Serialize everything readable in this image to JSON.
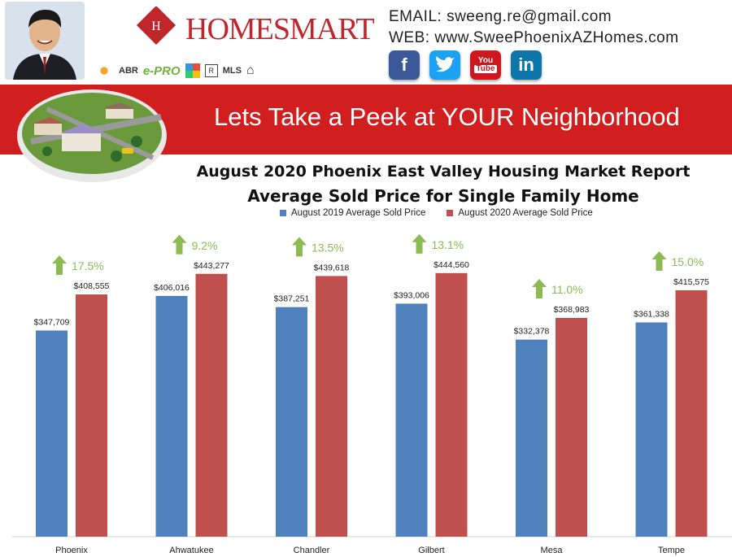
{
  "header": {
    "brand_name": "HOMESMART",
    "email": "EMAIL: sweeng.re@gmail.com",
    "web": "WEB: www.SweePhoenixAZHomes.com",
    "badges": [
      "ABR",
      "e-PRO",
      "MLS"
    ],
    "socials": [
      {
        "icon": "facebook-icon",
        "glyph": "f",
        "color": "#3b5998"
      },
      {
        "icon": "twitter-icon",
        "glyph": "t",
        "color": "#1da1f2"
      },
      {
        "icon": "youtube-icon",
        "glyph": "You Tube",
        "color": "#cc181e"
      },
      {
        "icon": "linkedin-icon",
        "glyph": "in",
        "color": "#0e76a8"
      }
    ]
  },
  "banner": {
    "title": "Lets Take a Peek at YOUR Neighborhood",
    "color": "#d11e1e"
  },
  "chart_data": {
    "type": "bar",
    "title": "August 2020 Phoenix East Valley Housing Market Report",
    "subtitle": "Average Sold Price for Single Family Home",
    "categories": [
      "Phoenix",
      "Ahwatukee",
      "Chandler",
      "Gilbert",
      "Mesa",
      "Tempe"
    ],
    "series": [
      {
        "name": "August 2019 Average Sold Price",
        "color": "#4f81bd",
        "values": [
          347709,
          406016,
          387251,
          393006,
          332378,
          361338
        ],
        "labels": [
          "$347,709",
          "$406,016",
          "$387,251",
          "$393,006",
          "$332,378",
          "$361,338"
        ]
      },
      {
        "name": "August 2020 Average Sold Price",
        "color": "#c0504d",
        "values": [
          408555,
          443277,
          439618,
          444560,
          368983,
          415575
        ],
        "labels": [
          "$408,555",
          "$443,277",
          "$439,618",
          "$444,560",
          "$368,983",
          "$415,575"
        ]
      }
    ],
    "changes": [
      "17.5%",
      "9.2%",
      "13.5%",
      "13.1%",
      "11.0%",
      "15.0%"
    ],
    "change_color": "#8dbb52",
    "ylim": [
      0,
      480000
    ],
    "grid": false,
    "legend": "top"
  }
}
